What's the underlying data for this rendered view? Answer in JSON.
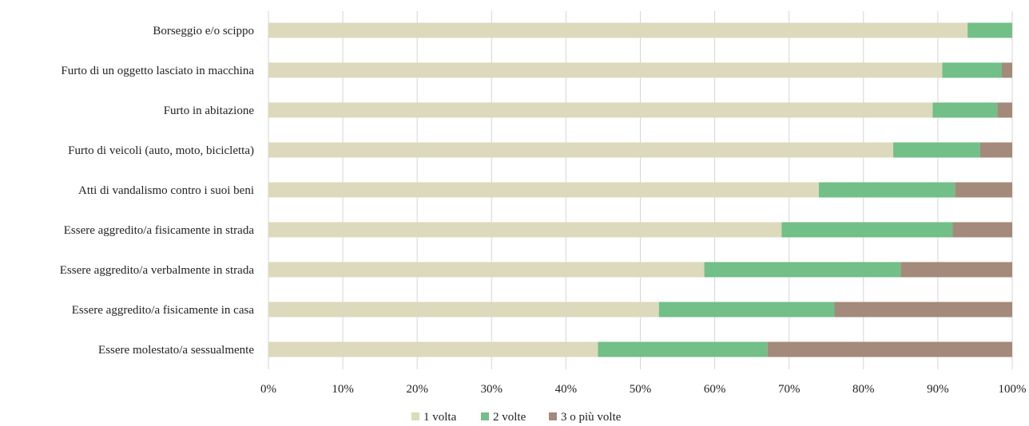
{
  "chart_data": {
    "type": "bar",
    "orientation": "horizontal",
    "stacked": "percent",
    "categories": [
      "Borseggio e/o scippo",
      "Furto di un oggetto lasciato in macchina",
      "Furto in abitazione",
      "Furto di veicoli (auto, moto, bicicletta)",
      "Atti di vandalismo contro i suoi beni",
      "Essere aggredito/a fisicamente in strada",
      "Essere aggredito/a verbalmente in strada",
      "Essere aggredito/a fisicamente in casa",
      "Essere molestato/a sessualmente"
    ],
    "series": [
      {
        "name": "1 volta",
        "color": "#ddd9bc",
        "values": [
          94.0,
          90.6,
          89.3,
          84.0,
          74.0,
          69.0,
          58.6,
          52.5,
          44.3
        ]
      },
      {
        "name": "2 volte",
        "color": "#72bf88",
        "values": [
          6.0,
          8.0,
          8.7,
          11.7,
          18.3,
          23.0,
          26.4,
          23.6,
          22.8
        ]
      },
      {
        "name": "3 o più volte",
        "color": "#a48a7a",
        "values": [
          0.0,
          1.4,
          2.0,
          4.3,
          7.7,
          8.0,
          15.0,
          23.9,
          32.9
        ]
      }
    ],
    "x_ticks": [
      "0%",
      "10%",
      "20%",
      "30%",
      "40%",
      "50%",
      "60%",
      "70%",
      "80%",
      "90%",
      "100%"
    ],
    "xlim": [
      0,
      100
    ],
    "title": "",
    "xlabel": "",
    "ylabel": "",
    "grid": true,
    "legend_position": "bottom"
  }
}
